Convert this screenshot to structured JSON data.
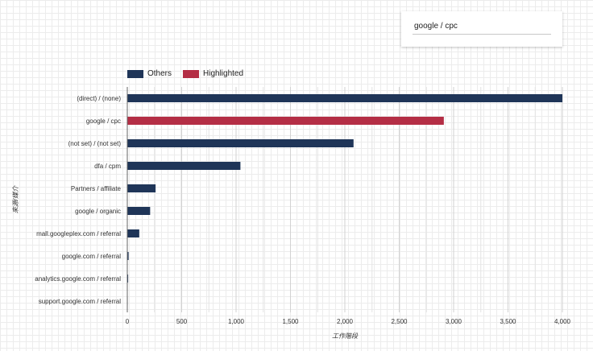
{
  "filter": {
    "value": "google / cpc"
  },
  "legend": {
    "others_label": "Others",
    "highlighted_label": "Highlighted",
    "others_color": "#1f3558",
    "highlighted_color": "#b42e45"
  },
  "chart_data": {
    "type": "bar",
    "orientation": "horizontal",
    "xlabel": "工作階段",
    "ylabel": "來源/媒介",
    "xlim": [
      0,
      4000
    ],
    "xticks": [
      0,
      500,
      1000,
      1500,
      2000,
      2500,
      3000,
      3500,
      4000
    ],
    "xtick_labels": [
      "0",
      "500",
      "1,000",
      "1,500",
      "2,000",
      "2,500",
      "3,000",
      "3,500",
      "4,000"
    ],
    "grid": "vertical",
    "legend_position": "top-left",
    "categories": [
      "(direct) / (none)",
      "google / cpc",
      "(not set) / (not set)",
      "dfa / cpm",
      "Partners / affiliate",
      "google / organic",
      "mall.googleplex.com / referral",
      "google.com / referral",
      "analytics.google.com / referral",
      "support.google.com / referral"
    ],
    "series": [
      {
        "name": "Others",
        "values": [
          4000,
          0,
          2080,
          1040,
          260,
          210,
          110,
          12,
          8,
          4
        ]
      },
      {
        "name": "Highlighted",
        "values": [
          0,
          2910,
          0,
          0,
          0,
          0,
          0,
          0,
          0,
          0
        ]
      }
    ]
  }
}
